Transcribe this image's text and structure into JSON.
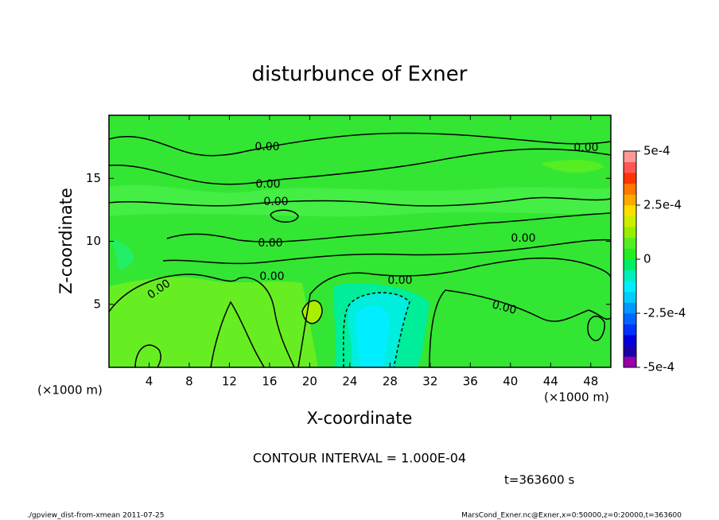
{
  "chart_data": {
    "type": "contour",
    "title": "disturbunce of Exner",
    "xlabel": "X-coordinate",
    "ylabel": "Z-coordinate",
    "x_unit_left": "(×1000 m)",
    "x_unit_right": "(×1000 m)",
    "xlim": [
      0,
      50
    ],
    "xticks": [
      4,
      8,
      12,
      16,
      20,
      24,
      28,
      32,
      36,
      40,
      44,
      48
    ],
    "ylim": [
      0,
      20
    ],
    "yticks": [
      5,
      10,
      15
    ],
    "contour_labels": [
      "0.00",
      "0.00",
      "0.00",
      "0.00",
      "0.00",
      "0.00",
      "0.00",
      "0.00",
      "0.00",
      "0.00"
    ],
    "colorbar": {
      "lim": [
        -0.0005,
        0.0005
      ],
      "ticks": [
        {
          "value": 0.0005,
          "label": "5e-4"
        },
        {
          "value": 0.00025,
          "label": "2.5e-4"
        },
        0,
        {
          "value": -0.00025,
          "label": "-2.5e-4"
        },
        {
          "value": -0.0005,
          "label": "-5e-4"
        }
      ],
      "colors": [
        "#9900aa",
        "#1a00aa",
        "#0000dd",
        "#0033ff",
        "#0066ff",
        "#0099ff",
        "#00ccff",
        "#00eeff",
        "#00eebb",
        "#00ee66",
        "#22ee22",
        "#55ee22",
        "#99ee00",
        "#ccee00",
        "#ffdd00",
        "#ffaa00",
        "#ff7700",
        "#ff3300",
        "#ff5555",
        "#ff9999"
      ]
    },
    "contour_interval": "CONTOUR INTERVAL = 1.000E-04",
    "time": "t=363600 s",
    "footer_left": "./gpview_dist-from-xmean  2011-07-25",
    "footer_right": "MarsCond_Exner.nc@Exner,x=0:50000,z=0:20000,t=363600"
  }
}
